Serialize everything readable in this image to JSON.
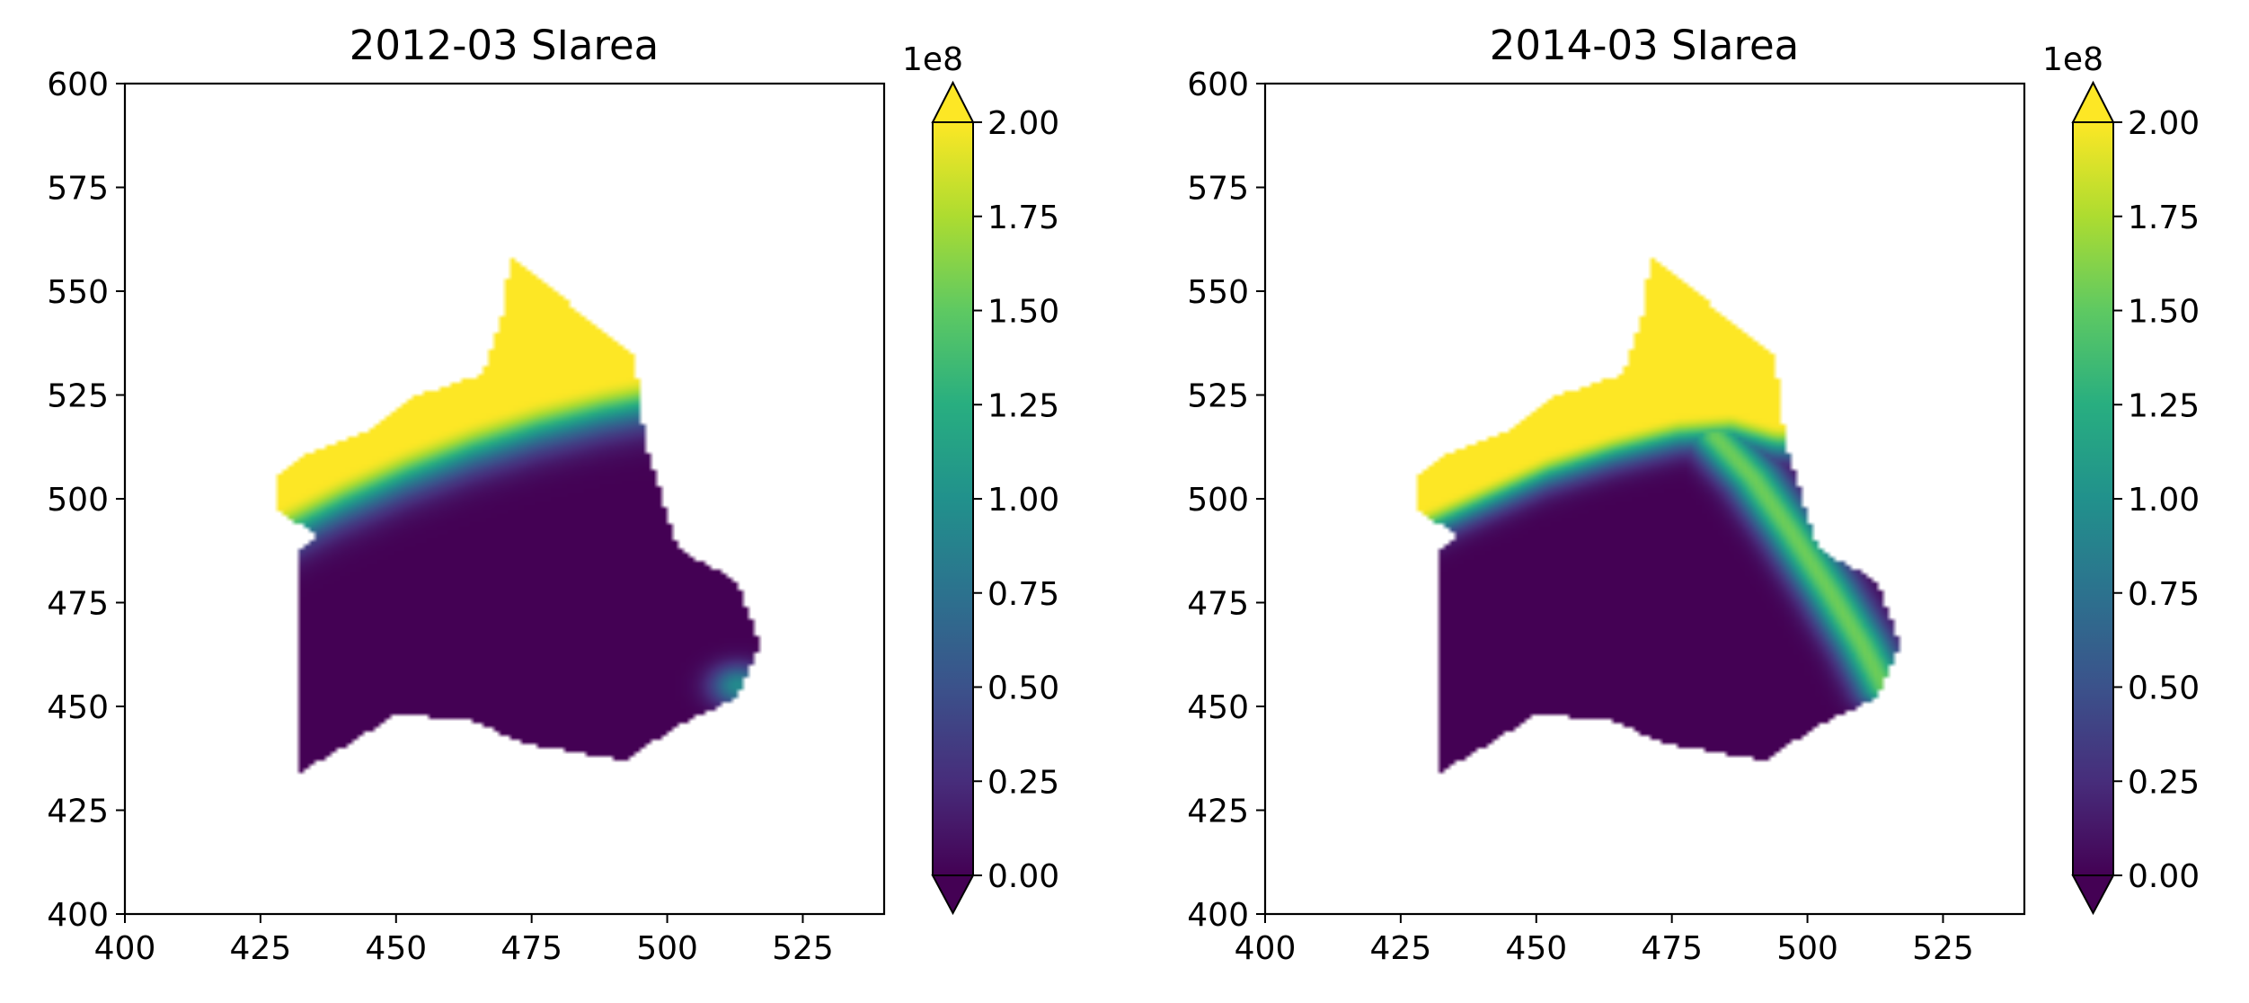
{
  "chart_data": [
    {
      "type": "heatmap",
      "title": "2012-03 SIarea",
      "xlabel": "",
      "ylabel": "",
      "xlim": [
        400,
        540
      ],
      "ylim": [
        400,
        600
      ],
      "x_ticks": [
        "400",
        "425",
        "450",
        "475",
        "500",
        "525"
      ],
      "y_ticks": [
        "400",
        "425",
        "450",
        "475",
        "500",
        "525",
        "550",
        "575",
        "600"
      ],
      "grid": false,
      "colormap": "viridis",
      "colorbar": {
        "range": [
          0,
          200000000
        ],
        "offset_label": "1e8",
        "ticks": [
          "0.00",
          "0.25",
          "0.50",
          "0.75",
          "1.00",
          "1.25",
          "1.50",
          "1.75",
          "2.00"
        ],
        "extend": "both"
      },
      "field": {
        "description_units": "values in units of 1e8",
        "region": [
          [
            432,
            434
          ],
          [
            432,
            488
          ],
          [
            436,
            491
          ],
          [
            428,
            497
          ],
          [
            428,
            505
          ],
          [
            434,
            511
          ],
          [
            446,
            517
          ],
          [
            454,
            525
          ],
          [
            466,
            530
          ],
          [
            470,
            546
          ],
          [
            471,
            559
          ],
          [
            494,
            534
          ],
          [
            496,
            513
          ],
          [
            502,
            488
          ],
          [
            513,
            480
          ],
          [
            517,
            465
          ],
          [
            513,
            452
          ],
          [
            503,
            446
          ],
          [
            492,
            437
          ],
          [
            474,
            441
          ],
          [
            463,
            447
          ],
          [
            450,
            448
          ],
          [
            440,
            440
          ]
        ],
        "north_front": [
          [
            428,
            498
          ],
          [
            440,
            506
          ],
          [
            452,
            513
          ],
          [
            464,
            519
          ],
          [
            476,
            524
          ],
          [
            488,
            528
          ],
          [
            496,
            530
          ]
        ],
        "front_width": 10,
        "peak_value": 2.0,
        "hotspots": [
          [
            [
              513,
              455
            ],
            0.95,
            5
          ]
        ]
      }
    },
    {
      "type": "heatmap",
      "title": "2014-03 SIarea",
      "xlabel": "",
      "ylabel": "",
      "xlim": [
        400,
        540
      ],
      "ylim": [
        400,
        600
      ],
      "x_ticks": [
        "400",
        "425",
        "450",
        "475",
        "500",
        "525"
      ],
      "y_ticks": [
        "400",
        "425",
        "450",
        "475",
        "500",
        "525",
        "550",
        "575",
        "600"
      ],
      "grid": false,
      "colormap": "viridis",
      "colorbar": {
        "range": [
          0,
          200000000
        ],
        "offset_label": "1e8",
        "ticks": [
          "0.00",
          "0.25",
          "0.50",
          "0.75",
          "1.00",
          "1.25",
          "1.50",
          "1.75",
          "2.00"
        ],
        "extend": "both"
      },
      "field": {
        "description_units": "values in units of 1e8",
        "region": [
          [
            432,
            434
          ],
          [
            432,
            488
          ],
          [
            436,
            491
          ],
          [
            428,
            497
          ],
          [
            428,
            505
          ],
          [
            434,
            511
          ],
          [
            446,
            517
          ],
          [
            454,
            525
          ],
          [
            466,
            530
          ],
          [
            470,
            546
          ],
          [
            471,
            559
          ],
          [
            494,
            534
          ],
          [
            496,
            513
          ],
          [
            502,
            488
          ],
          [
            513,
            480
          ],
          [
            517,
            465
          ],
          [
            513,
            452
          ],
          [
            503,
            446
          ],
          [
            492,
            437
          ],
          [
            474,
            441
          ],
          [
            463,
            447
          ],
          [
            450,
            448
          ],
          [
            440,
            440
          ]
        ],
        "north_front": [
          [
            428,
            497
          ],
          [
            440,
            504
          ],
          [
            452,
            511
          ],
          [
            464,
            516
          ],
          [
            476,
            520
          ],
          [
            486,
            521
          ],
          [
            494,
            518
          ]
        ],
        "front_width": 7,
        "east_front": [
          [
            483,
            515
          ],
          [
            490,
            505
          ],
          [
            497,
            492
          ],
          [
            504,
            478
          ],
          [
            510,
            465
          ],
          [
            514,
            455
          ]
        ],
        "east_front_width": 5,
        "peak_value": 2.0,
        "hotspots": []
      }
    }
  ]
}
